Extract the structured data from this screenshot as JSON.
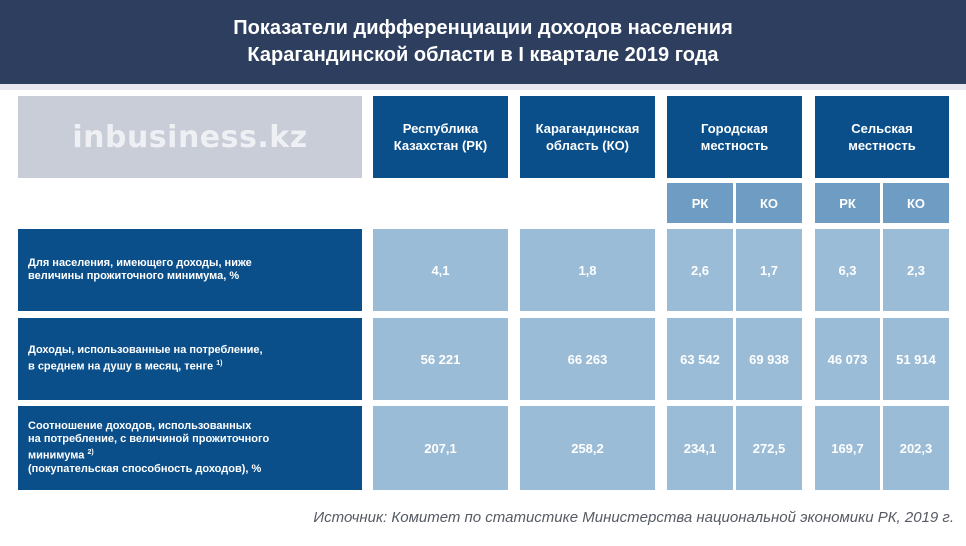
{
  "title": {
    "line1": "Показатели дифференциации доходов населения",
    "line2": "Карагандинской области в I квартале 2019 года"
  },
  "logo": "inbusiness.kz",
  "columns": {
    "rk": [
      "Республика",
      "Казахстан (РК)"
    ],
    "ko": [
      "Карагандинская",
      "область (КО)"
    ],
    "urban": [
      "Городская",
      "местность"
    ],
    "rural": [
      "Сельская",
      "местность"
    ],
    "sub_rk": "РК",
    "sub_ko": "КО"
  },
  "rows": [
    {
      "label": [
        "Для населения, имеющего доходы, ниже",
        "величины прожиточного минимума, %"
      ],
      "rk": "4,1",
      "ko": "1,8",
      "urban_rk": "2,6",
      "urban_ko": "1,7",
      "rural_rk": "6,3",
      "rural_ko": "2,3"
    },
    {
      "label": [
        "Доходы, использованные на потребление,",
        "в среднем на душу в месяц, тенге"
      ],
      "footnote": "1)",
      "rk": "56 221",
      "ko": "66 263",
      "urban_rk": "63 542",
      "urban_ko": "69 938",
      "rural_rk": "46 073",
      "rural_ko": "51 914"
    },
    {
      "label": [
        "Соотношение доходов, использованных",
        "на потребление, с величиной прожиточного",
        "минимума",
        "(покупательская способность доходов), %"
      ],
      "footnote": "2)",
      "rk": "207,1",
      "ko": "258,2",
      "urban_rk": "234,1",
      "urban_ko": "272,5",
      "rural_rk": "169,7",
      "rural_ko": "202,3"
    }
  ],
  "source": "Источник: Комитет по статистике Министерства национальной экономики РК, 2019 г."
}
